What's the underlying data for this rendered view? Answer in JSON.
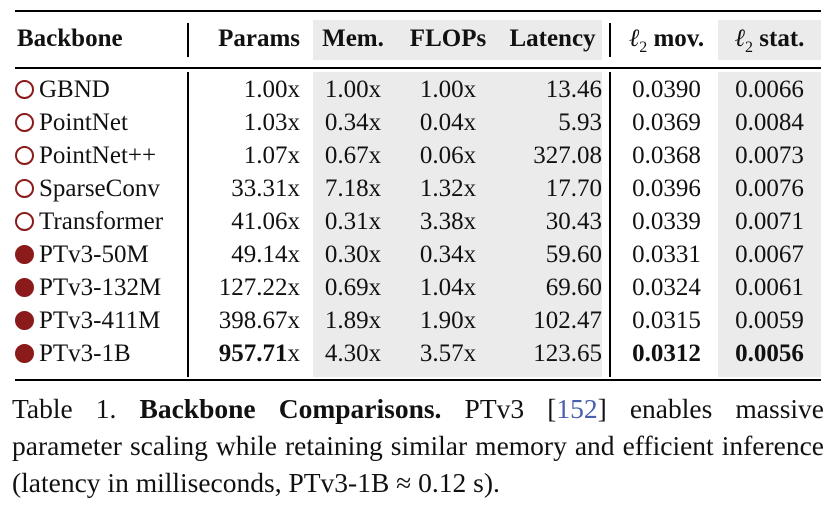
{
  "table": {
    "headers": {
      "backbone": "Backbone",
      "params": "Params",
      "mem": "Mem.",
      "flops": "FLOPs",
      "latency": "Latency",
      "l2mov_sym": "ℓ",
      "l2mov_sub": "2",
      "l2mov_txt": " mov.",
      "l2stat_sym": "ℓ",
      "l2stat_sub": "2",
      "l2stat_txt": " stat."
    },
    "rows": [
      {
        "name": "GBND",
        "marker": "open",
        "params": "1.00x",
        "mem": "1.00x",
        "flops": "1.00x",
        "latency": "13.46",
        "l2mov": "0.0390",
        "l2stat": "0.0066"
      },
      {
        "name": "PointNet",
        "marker": "open",
        "params": "1.03x",
        "mem": "0.34x",
        "flops": "0.04x",
        "latency": "5.93",
        "l2mov": "0.0369",
        "l2stat": "0.0084"
      },
      {
        "name": "PointNet++",
        "marker": "open",
        "params": "1.07x",
        "mem": "0.67x",
        "flops": "0.06x",
        "latency": "327.08",
        "l2mov": "0.0368",
        "l2stat": "0.0073"
      },
      {
        "name": "SparseConv",
        "marker": "open",
        "params": "33.31x",
        "mem": "7.18x",
        "flops": "1.32x",
        "latency": "17.70",
        "l2mov": "0.0396",
        "l2stat": "0.0076"
      },
      {
        "name": "Transformer",
        "marker": "open",
        "params": "41.06x",
        "mem": "0.31x",
        "flops": "3.38x",
        "latency": "30.43",
        "l2mov": "0.0339",
        "l2stat": "0.0071"
      },
      {
        "name": "PTv3-50M",
        "marker": "filled",
        "params": "49.14x",
        "mem": "0.30x",
        "flops": "0.34x",
        "latency": "59.60",
        "l2mov": "0.0331",
        "l2stat": "0.0067"
      },
      {
        "name": "PTv3-132M",
        "marker": "filled",
        "params": "127.22x",
        "mem": "0.69x",
        "flops": "1.04x",
        "latency": "69.60",
        "l2mov": "0.0324",
        "l2stat": "0.0061"
      },
      {
        "name": "PTv3-411M",
        "marker": "filled",
        "params": "398.67x",
        "mem": "1.89x",
        "flops": "1.90x",
        "latency": "102.47",
        "l2mov": "0.0315",
        "l2stat": "0.0059"
      },
      {
        "name": "PTv3-1B",
        "marker": "filled",
        "params_bold": "957.71",
        "params_suffix": "x",
        "mem": "4.30x",
        "flops": "3.57x",
        "latency": "123.65",
        "l2mov": "0.0312",
        "l2stat": "0.0056"
      }
    ]
  },
  "caption": {
    "label": "Table 1. ",
    "title": "Backbone Comparisons.",
    "text1": " PTv3 [",
    "cite": "152",
    "text2": "] enables massive parameter scaling while retaining similar memory and efficient inference (latency in milliseconds, PTv3-1B ≈ 0.12 s)."
  },
  "colors": {
    "marker": "#8b1a1a",
    "shade": "#ebebeb",
    "cite": "#4a5fb0"
  }
}
